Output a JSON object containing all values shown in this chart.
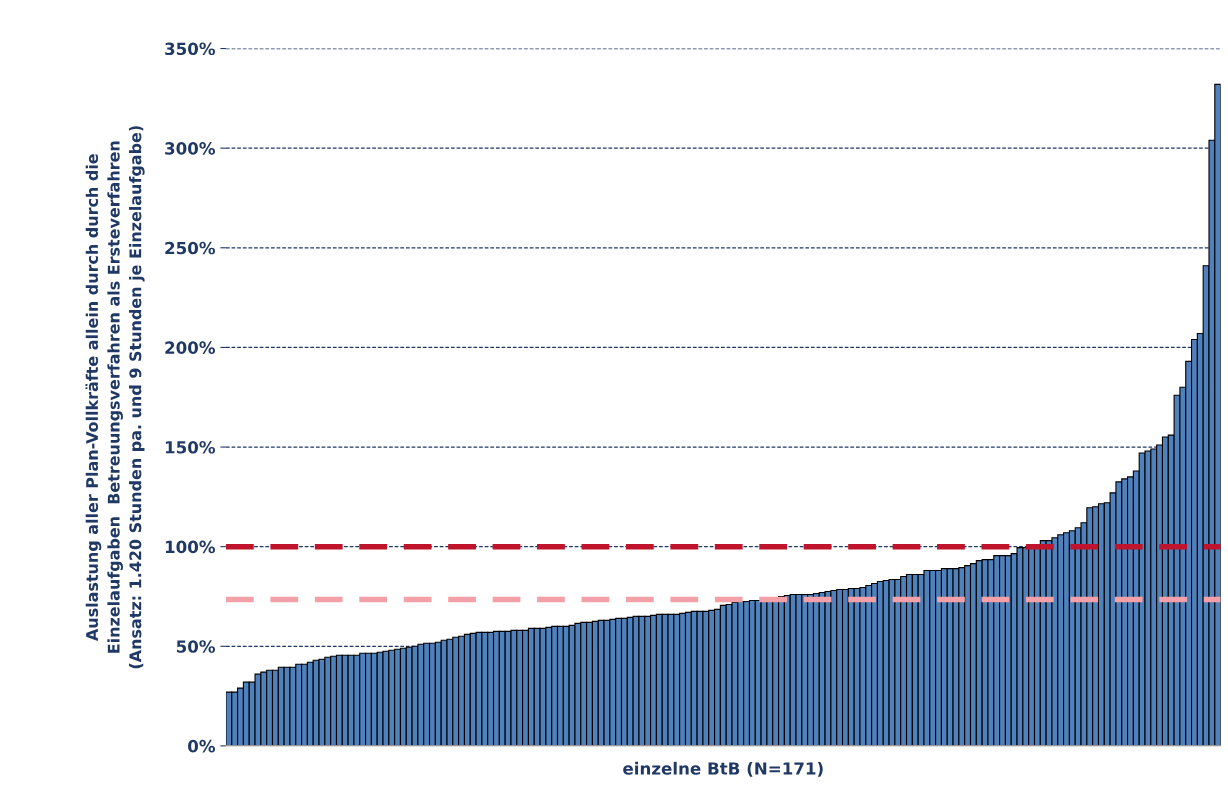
{
  "chart_data": {
    "type": "bar",
    "xlabel": "einzelne BtB (N=171)",
    "ylabel": "Auslastung aller Plan-Vollkräfte allein durch durch die\nEinzelaufgaben  Betreuungsverfahren als Ersteverfahren\n(Ansatz: 1.420 Stunden pa. und 9 Stunden je Einzelaufgabe)",
    "categories": [
      null,
      null,
      null,
      null,
      null,
      null,
      null,
      null,
      null,
      null,
      null,
      null,
      null,
      null,
      null,
      null,
      null,
      null,
      null,
      null,
      null,
      null,
      null,
      null,
      null,
      null,
      null,
      null,
      null,
      null,
      null,
      null,
      null,
      null,
      null,
      null,
      null,
      null,
      null,
      null,
      null,
      null,
      null,
      null,
      null,
      null,
      null,
      null,
      null,
      null,
      null,
      null,
      null,
      null,
      null,
      null,
      null,
      null,
      null,
      null,
      null,
      null,
      null,
      null,
      null,
      null,
      null,
      null,
      null,
      null,
      null,
      null,
      null,
      null,
      null,
      null,
      null,
      null,
      null,
      null,
      null,
      null,
      null,
      null,
      null,
      null,
      null,
      null,
      null,
      null,
      null,
      null,
      null,
      null,
      null,
      null,
      null,
      null,
      null,
      null,
      null,
      null,
      null,
      null,
      null,
      null,
      null,
      null,
      null,
      null,
      null,
      null,
      null,
      null,
      null,
      null,
      null,
      null,
      null,
      null,
      null,
      null,
      null,
      null,
      null,
      null,
      null,
      null,
      null,
      null,
      null,
      null,
      null,
      null,
      null,
      null,
      null,
      null,
      null,
      null,
      null,
      null,
      null,
      null,
      null,
      null,
      null,
      null,
      null,
      null,
      null,
      null,
      null,
      null,
      null,
      null,
      null,
      null,
      null,
      null,
      null,
      null,
      null,
      null,
      null,
      null,
      null,
      null,
      null,
      null,
      null
    ],
    "values": [
      27,
      27,
      29,
      32,
      32,
      36,
      37,
      38,
      38,
      39.5,
      39.5,
      39.5,
      41,
      41,
      42,
      43,
      43.5,
      44.5,
      45,
      45.5,
      45.5,
      45.5,
      45.5,
      46.5,
      46.5,
      46.5,
      47,
      47.5,
      48,
      48.5,
      49,
      49.5,
      50,
      51,
      51.5,
      51.5,
      52,
      53,
      53.5,
      54.5,
      55,
      56,
      56.5,
      57,
      57,
      57,
      57.5,
      57.5,
      57.5,
      58,
      58,
      58,
      59,
      59,
      59,
      59.5,
      60,
      60,
      60,
      60.5,
      61.5,
      62,
      62,
      62.5,
      63,
      63,
      63.5,
      64,
      64,
      64.5,
      65,
      65,
      65,
      65.5,
      66,
      66,
      66,
      66,
      66.5,
      67,
      67.5,
      67.5,
      67.5,
      68,
      68.5,
      70.5,
      71,
      72,
      72.5,
      72.5,
      73,
      73,
      73,
      74,
      74.5,
      75,
      75.5,
      76,
      76,
      76,
      76,
      76.5,
      77,
      77.5,
      78,
      78.5,
      78.5,
      79,
      79,
      79.5,
      80.5,
      81.5,
      82.5,
      83,
      83.5,
      83.5,
      85,
      86,
      86,
      86,
      88,
      88,
      88,
      89,
      89,
      89,
      89.5,
      90.5,
      91.5,
      93,
      93.5,
      93.5,
      95.5,
      95.5,
      95.5,
      96.5,
      99.5,
      99.5,
      99.5,
      101,
      103,
      103,
      104.5,
      106,
      107,
      108,
      109.5,
      112,
      119.5,
      120,
      121.5,
      122,
      127,
      132.5,
      134,
      135,
      138,
      147,
      148,
      149,
      151,
      155,
      156,
      176,
      180,
      193,
      204,
      207,
      241,
      304,
      332
    ],
    "color": "#4f81bd",
    "ylim": [
      0,
      350
    ],
    "yticks": [
      {
        "value": 0,
        "label": "0%"
      },
      {
        "value": 50,
        "label": "50%"
      },
      {
        "value": 100,
        "label": "100%"
      },
      {
        "value": 150,
        "label": "150%"
      },
      {
        "value": 200,
        "label": "200%"
      },
      {
        "value": 250,
        "label": "250%"
      },
      {
        "value": 300,
        "label": "300%"
      },
      {
        "value": 350,
        "label": "350%"
      }
    ],
    "grid": "y",
    "ref_lines": [
      {
        "axis": "y",
        "value": 100,
        "label": null,
        "color": "#c0142c",
        "line_style": "dashed"
      },
      {
        "axis": "y",
        "value": 73.5,
        "label": null,
        "color": "#f4a0a8",
        "line_style": "dashed"
      }
    ]
  }
}
